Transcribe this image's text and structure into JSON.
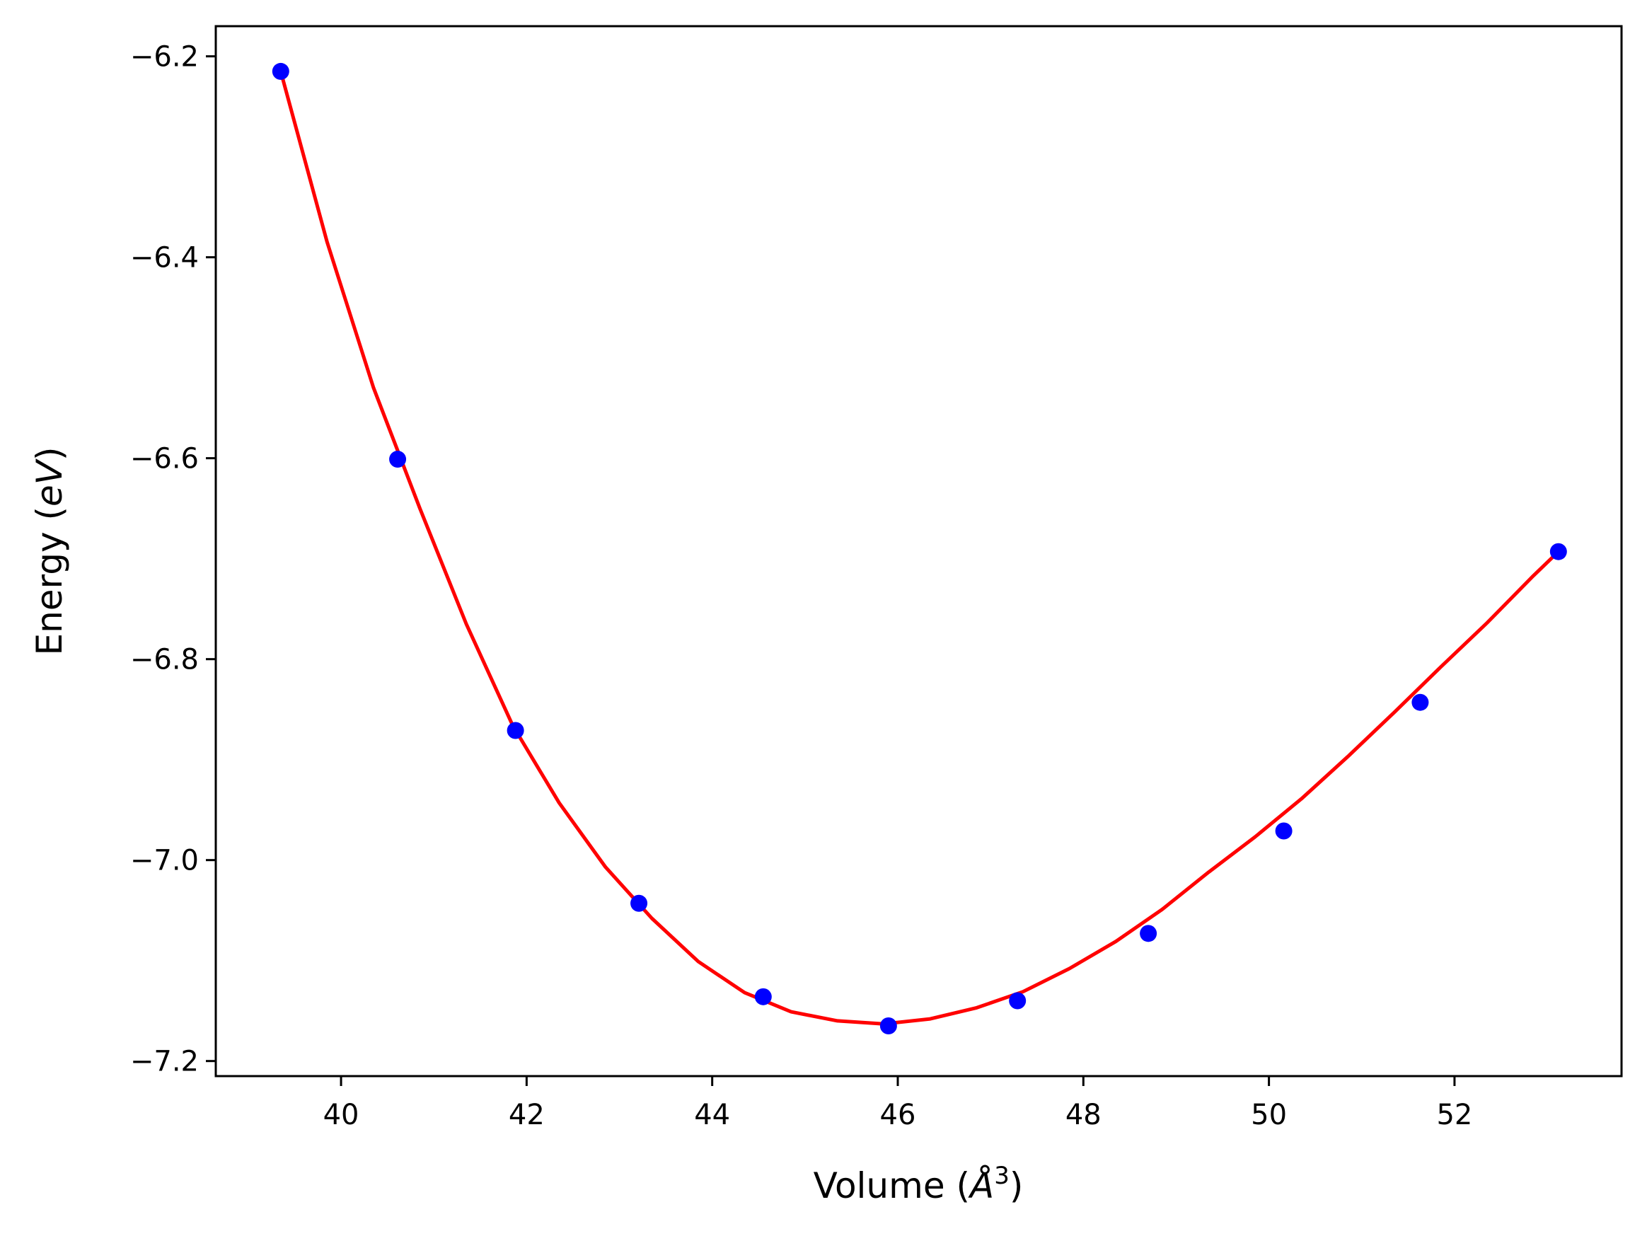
{
  "chart_data": {
    "type": "scatter",
    "title": "",
    "xlabel": "Volume (",
    "xlabel_unit": "Å",
    "xlabel_exp": "3",
    "xlabel_close": ")",
    "ylabel": "Energy (",
    "ylabel_unit": "eV",
    "ylabel_close": ")",
    "xlim": [
      38.65,
      53.8
    ],
    "ylim": [
      -7.215,
      -6.17
    ],
    "xticks": [
      40,
      42,
      44,
      46,
      48,
      50,
      52
    ],
    "yticks": [
      -6.2,
      -6.4,
      -6.6,
      -6.8,
      -7.0,
      -7.2
    ],
    "xtick_labels": [
      "40",
      "42",
      "44",
      "46",
      "48",
      "50",
      "52"
    ],
    "ytick_labels": [
      "−6.2",
      "−6.4",
      "−6.6",
      "−6.8",
      "−7.0",
      "−7.2"
    ],
    "grid": false,
    "series": [
      {
        "kind": "points",
        "color": "#0000ff",
        "x": [
          39.35,
          40.61,
          41.88,
          43.21,
          44.55,
          45.9,
          47.29,
          48.7,
          50.16,
          51.63,
          53.12
        ],
        "y": [
          -6.215,
          -6.601,
          -6.871,
          -7.043,
          -7.136,
          -7.165,
          -7.14,
          -7.073,
          -6.971,
          -6.843,
          -6.693
        ]
      },
      {
        "kind": "fit-line",
        "color": "#ff0000",
        "x": [
          39.35,
          39.85,
          40.35,
          40.85,
          41.35,
          41.85,
          42.35,
          42.85,
          43.35,
          43.85,
          44.35,
          44.85,
          45.35,
          45.85,
          46.35,
          46.85,
          47.35,
          47.85,
          48.35,
          48.85,
          49.35,
          49.85,
          50.35,
          50.85,
          51.35,
          51.85,
          52.35,
          52.85,
          53.12
        ],
        "y": [
          -6.215,
          -6.385,
          -6.53,
          -6.65,
          -6.765,
          -6.866,
          -6.943,
          -7.007,
          -7.058,
          -7.101,
          -7.132,
          -7.151,
          -7.16,
          -7.163,
          -7.158,
          -7.147,
          -7.131,
          -7.108,
          -7.081,
          -7.049,
          -7.012,
          -6.977,
          -6.939,
          -6.897,
          -6.853,
          -6.808,
          -6.764,
          -6.717,
          -6.693
        ]
      }
    ]
  }
}
